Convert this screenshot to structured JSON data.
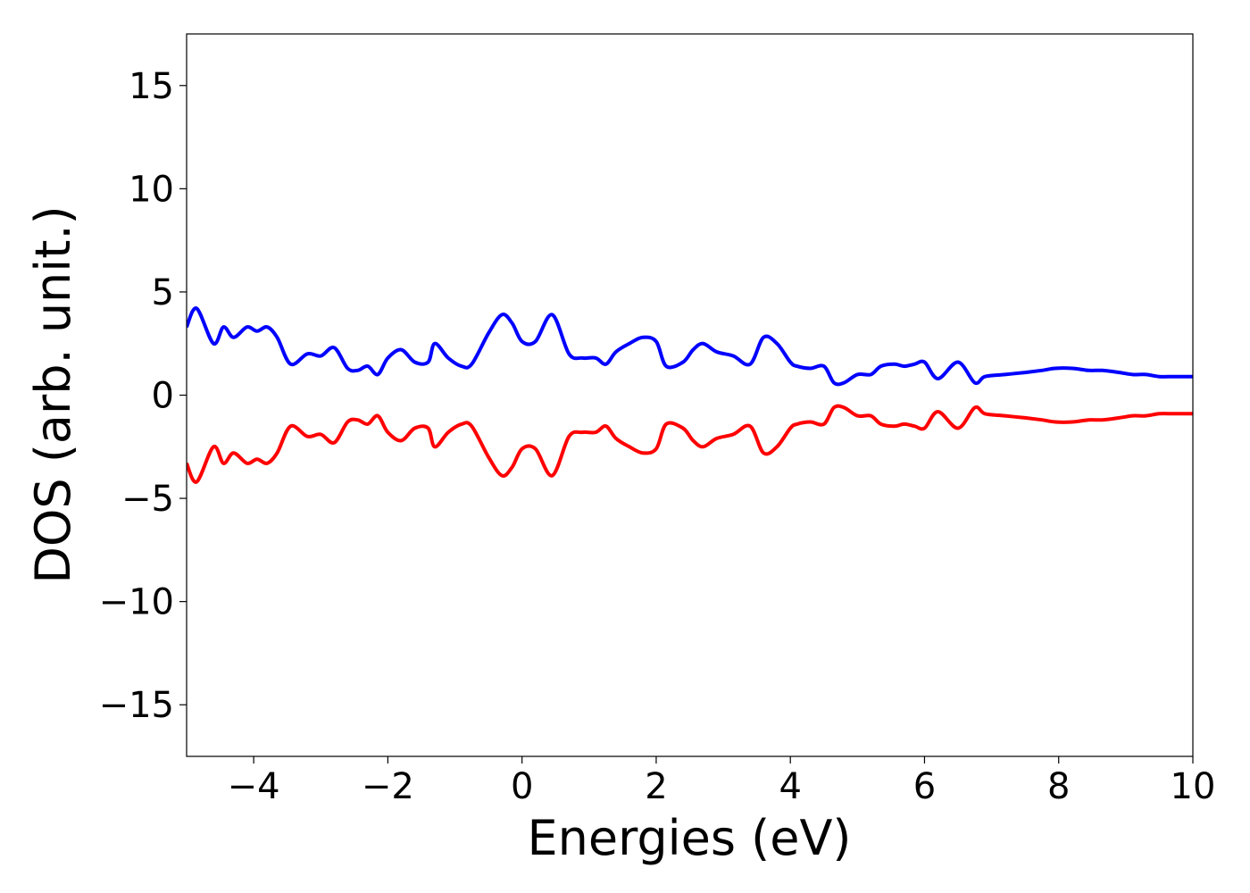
{
  "chart_data": {
    "type": "line",
    "title": "",
    "xlabel": "Energies (eV)",
    "ylabel": "DOS (arb. unit.)",
    "xlim": [
      -5,
      10
    ],
    "ylim": [
      -17.5,
      17.5
    ],
    "x_ticks": [
      -4,
      -2,
      0,
      2,
      4,
      6,
      8,
      10
    ],
    "x_tick_labels": [
      "−4",
      "−2",
      "0",
      "2",
      "4",
      "6",
      "8",
      "10"
    ],
    "y_ticks": [
      15,
      10,
      5,
      0,
      -5,
      -10,
      -15
    ],
    "y_tick_labels": [
      "15",
      "10",
      "5",
      "0",
      "−5",
      "−10",
      "−15"
    ],
    "grid": false,
    "legend": "none",
    "series": [
      {
        "color": "#0000ff",
        "x": [
          -5.0,
          -4.85,
          -4.6,
          -4.45,
          -4.3,
          -4.1,
          -3.95,
          -3.8,
          -3.65,
          -3.45,
          -3.2,
          -3.0,
          -2.8,
          -2.6,
          -2.45,
          -2.3,
          -2.15,
          -2.0,
          -1.8,
          -1.6,
          -1.4,
          -1.3,
          -1.1,
          -0.9,
          -0.75,
          -0.5,
          -0.3,
          -0.15,
          0.0,
          0.2,
          0.45,
          0.7,
          0.9,
          1.1,
          1.25,
          1.4,
          1.6,
          1.8,
          2.0,
          2.15,
          2.4,
          2.55,
          2.7,
          2.9,
          3.15,
          3.4,
          3.6,
          3.8,
          4.0,
          4.1,
          4.3,
          4.5,
          4.65,
          4.8,
          5.0,
          5.2,
          5.35,
          5.55,
          5.7,
          5.85,
          6.0,
          6.2,
          6.5,
          6.75,
          6.9,
          7.2,
          7.5,
          7.75,
          7.95,
          8.2,
          8.45,
          8.65,
          8.9,
          9.1,
          9.3,
          9.5,
          9.7,
          9.85,
          10.0
        ],
        "y": [
          3.3,
          4.2,
          2.5,
          3.3,
          2.8,
          3.3,
          3.1,
          3.3,
          2.8,
          1.5,
          2.0,
          1.9,
          2.3,
          1.3,
          1.2,
          1.4,
          1.0,
          1.8,
          2.2,
          1.6,
          1.6,
          2.5,
          1.8,
          1.4,
          1.5,
          3.0,
          3.9,
          3.5,
          2.6,
          2.6,
          3.9,
          2.0,
          1.8,
          1.8,
          1.5,
          2.1,
          2.5,
          2.8,
          2.6,
          1.4,
          1.6,
          2.2,
          2.5,
          2.1,
          1.9,
          1.5,
          2.8,
          2.5,
          1.6,
          1.4,
          1.3,
          1.4,
          0.6,
          0.6,
          1.0,
          1.0,
          1.4,
          1.5,
          1.4,
          1.5,
          1.6,
          0.8,
          1.6,
          0.6,
          0.9,
          1.0,
          1.1,
          1.2,
          1.3,
          1.3,
          1.2,
          1.2,
          1.1,
          1.0,
          1.0,
          0.9,
          0.9,
          0.9,
          0.9
        ]
      },
      {
        "color": "#ff0000",
        "x": [
          -5.0,
          -4.85,
          -4.6,
          -4.45,
          -4.3,
          -4.1,
          -3.95,
          -3.8,
          -3.65,
          -3.45,
          -3.2,
          -3.0,
          -2.8,
          -2.6,
          -2.45,
          -2.3,
          -2.15,
          -2.0,
          -1.8,
          -1.6,
          -1.4,
          -1.3,
          -1.1,
          -0.9,
          -0.75,
          -0.5,
          -0.3,
          -0.15,
          0.0,
          0.2,
          0.45,
          0.7,
          0.9,
          1.1,
          1.25,
          1.4,
          1.6,
          1.8,
          2.0,
          2.15,
          2.4,
          2.55,
          2.7,
          2.9,
          3.15,
          3.4,
          3.6,
          3.8,
          4.0,
          4.1,
          4.3,
          4.5,
          4.65,
          4.8,
          5.0,
          5.2,
          5.35,
          5.55,
          5.7,
          5.85,
          6.0,
          6.2,
          6.5,
          6.75,
          6.9,
          7.2,
          7.5,
          7.75,
          7.95,
          8.2,
          8.45,
          8.65,
          8.9,
          9.1,
          9.3,
          9.5,
          9.7,
          9.85,
          10.0
        ],
        "y": [
          -3.3,
          -4.2,
          -2.5,
          -3.3,
          -2.8,
          -3.3,
          -3.1,
          -3.3,
          -2.8,
          -1.5,
          -2.0,
          -1.9,
          -2.3,
          -1.3,
          -1.2,
          -1.4,
          -1.0,
          -1.8,
          -2.2,
          -1.6,
          -1.6,
          -2.5,
          -1.8,
          -1.4,
          -1.5,
          -3.0,
          -3.9,
          -3.5,
          -2.6,
          -2.6,
          -3.9,
          -2.0,
          -1.8,
          -1.8,
          -1.5,
          -2.1,
          -2.5,
          -2.8,
          -2.6,
          -1.4,
          -1.6,
          -2.2,
          -2.5,
          -2.1,
          -1.9,
          -1.5,
          -2.8,
          -2.5,
          -1.6,
          -1.4,
          -1.3,
          -1.4,
          -0.6,
          -0.6,
          -1.0,
          -1.0,
          -1.4,
          -1.5,
          -1.4,
          -1.5,
          -1.6,
          -0.8,
          -1.6,
          -0.6,
          -0.9,
          -1.0,
          -1.1,
          -1.2,
          -1.3,
          -1.3,
          -1.2,
          -1.2,
          -1.1,
          -1.0,
          -1.0,
          -0.9,
          -0.9,
          -0.9,
          -0.9
        ]
      }
    ]
  }
}
